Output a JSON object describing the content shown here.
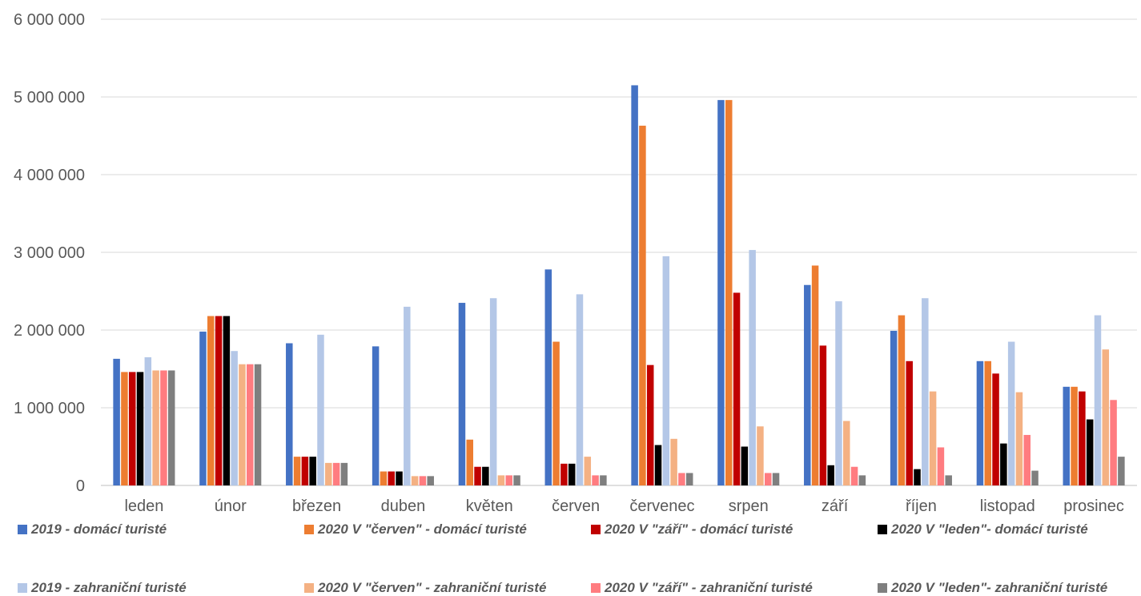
{
  "chart_data": {
    "type": "bar",
    "title": "",
    "xlabel": "",
    "ylabel": "",
    "ylim": [
      0,
      6000000
    ],
    "yticks": [
      "0",
      "1 000 000",
      "2 000 000",
      "3 000 000",
      "4 000 000",
      "5 000 000",
      "6 000 000"
    ],
    "grid": true,
    "legend_position": "bottom",
    "categories": [
      "leden",
      "únor",
      "březen",
      "duben",
      "květen",
      "červen",
      "červenec",
      "srpen",
      "září",
      "říjen",
      "listopad",
      "prosinec"
    ],
    "series": [
      {
        "name": "2019 - domácí turisté",
        "color": "#4472C4",
        "values": [
          1630000,
          1980000,
          1830000,
          1790000,
          2350000,
          2780000,
          5150000,
          4960000,
          2580000,
          1990000,
          1600000,
          1270000
        ]
      },
      {
        "name": "2020 V \"červen\" - domácí turisté",
        "color": "#ED7D31",
        "values": [
          1460000,
          2180000,
          370000,
          180000,
          590000,
          1850000,
          4630000,
          4960000,
          2830000,
          2190000,
          1600000,
          1270000
        ]
      },
      {
        "name": "2020 V \"září\" - domácí turisté",
        "color": "#C00000",
        "values": [
          1460000,
          2180000,
          370000,
          180000,
          240000,
          280000,
          1550000,
          2480000,
          1800000,
          1600000,
          1440000,
          1210000
        ]
      },
      {
        "name": "2020 V \"leden\"- domácí turisté",
        "color": "#000000",
        "values": [
          1460000,
          2180000,
          370000,
          180000,
          240000,
          280000,
          520000,
          500000,
          260000,
          210000,
          540000,
          850000
        ]
      },
      {
        "name": "2019 - zahraniční turisté",
        "color": "#B4C7E7",
        "values": [
          1650000,
          1730000,
          1940000,
          2300000,
          2410000,
          2460000,
          2950000,
          3030000,
          2370000,
          2410000,
          1850000,
          2190000
        ]
      },
      {
        "name": "2020 V \"červen\" - zahraniční turisté",
        "color": "#F4B183",
        "values": [
          1480000,
          1560000,
          290000,
          120000,
          130000,
          370000,
          600000,
          760000,
          830000,
          1210000,
          1200000,
          1750000
        ]
      },
      {
        "name": "2020 V \"září\" - zahraniční turisté",
        "color": "#FF7C80",
        "values": [
          1480000,
          1560000,
          290000,
          120000,
          130000,
          130000,
          160000,
          160000,
          240000,
          490000,
          650000,
          1100000
        ]
      },
      {
        "name": "2020 V \"leden\"- zahraniční turisté",
        "color": "#7F7F7F",
        "values": [
          1480000,
          1560000,
          290000,
          120000,
          130000,
          130000,
          160000,
          160000,
          130000,
          130000,
          190000,
          370000
        ]
      }
    ]
  }
}
